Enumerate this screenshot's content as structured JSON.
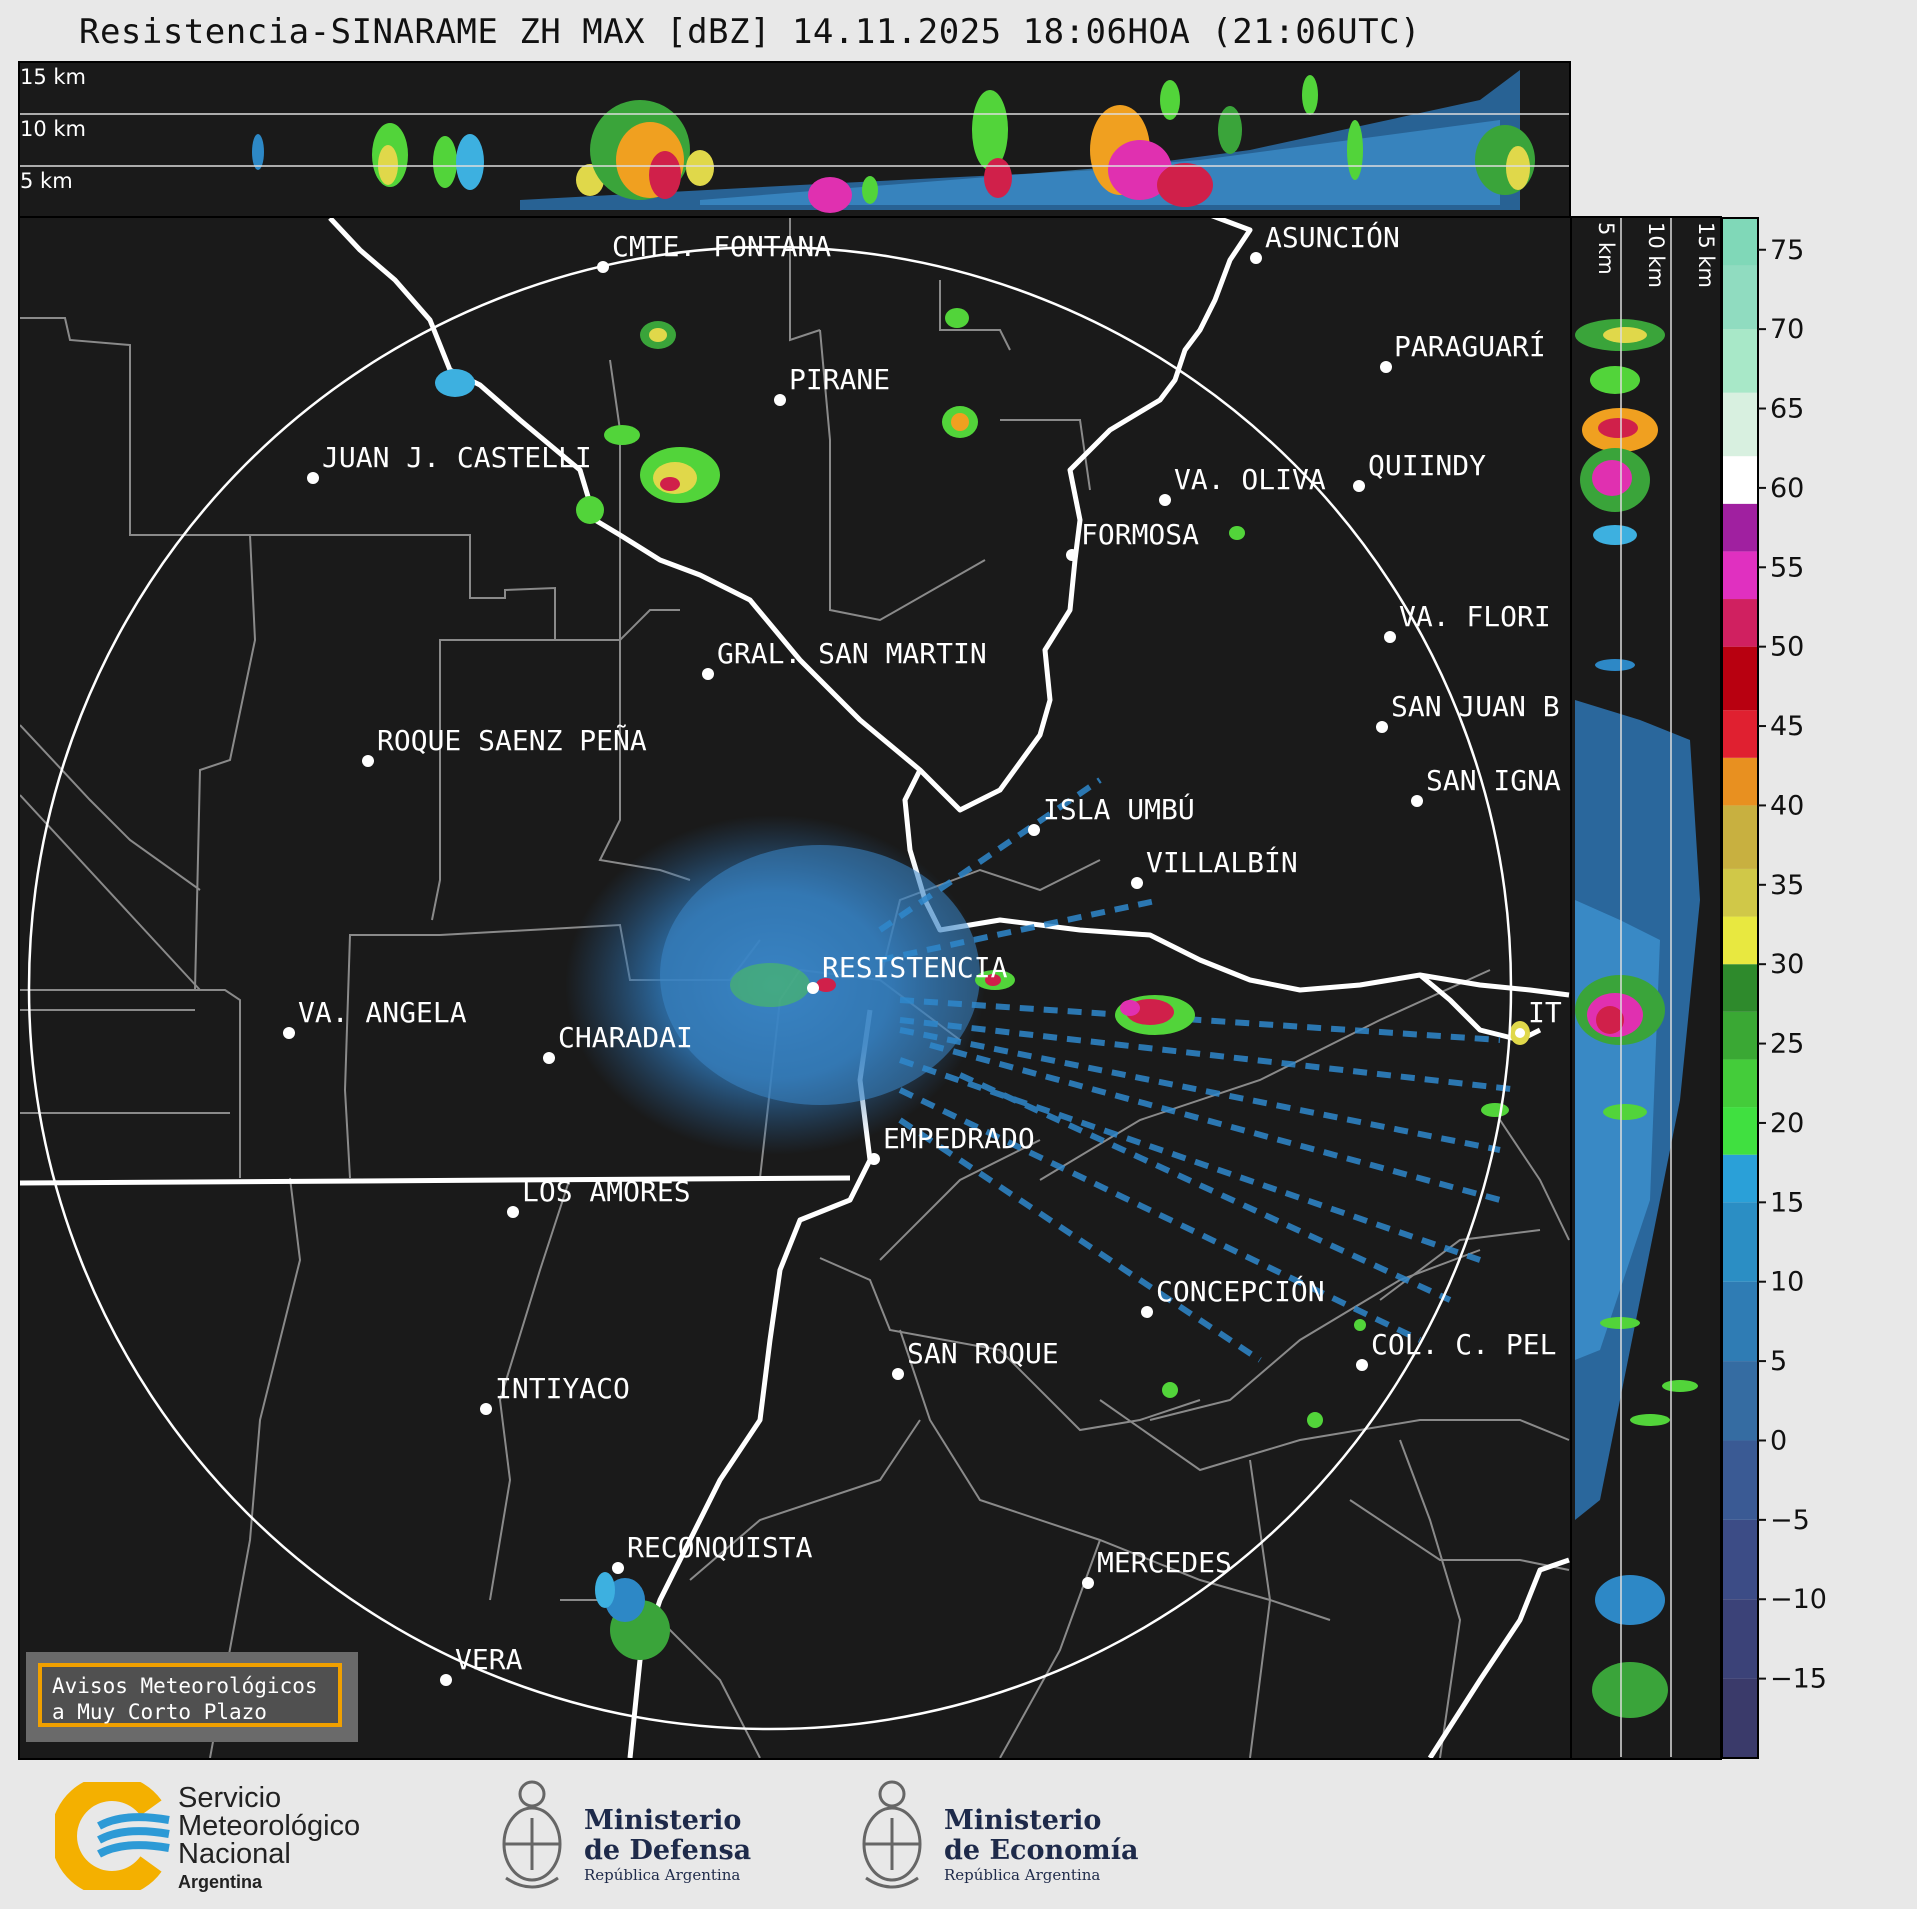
{
  "title": "Resistencia-SINARAME ZH MAX [dBZ] 14.11.2025 18:06HOA (21:06UTC)",
  "top_panel_labels": [
    "15 km",
    "10 km",
    "5 km"
  ],
  "side_panel_labels": [
    "5 km",
    "10 km",
    "15 km"
  ],
  "colorbar": {
    "ticks": [
      "75",
      "70",
      "65",
      "60",
      "55",
      "50",
      "45",
      "40",
      "35",
      "30",
      "25",
      "20",
      "15",
      "10",
      "5",
      "0",
      "−5",
      "−10",
      "−15"
    ],
    "range": [
      -20,
      77
    ]
  },
  "cities": [
    {
      "name": "CMTE. FONTANA"
    },
    {
      "name": "ASUNCIÓN"
    },
    {
      "name": "PARAGUARÍ"
    },
    {
      "name": "PIRANE"
    },
    {
      "name": "JUAN J. CASTELLI"
    },
    {
      "name": "VA. OLIVA"
    },
    {
      "name": "QUIINDY"
    },
    {
      "name": "FORMOSA"
    },
    {
      "name": "VA. FLORI"
    },
    {
      "name": "GRAL. SAN MARTIN"
    },
    {
      "name": "SAN JUAN B"
    },
    {
      "name": "ROQUE SAENZ PEÑA"
    },
    {
      "name": "SAN IGNA"
    },
    {
      "name": "ISLA UMBÚ"
    },
    {
      "name": "VILLALBÍN"
    },
    {
      "name": "RESISTENCIA"
    },
    {
      "name": "VA. ANGELA"
    },
    {
      "name": "CHARADAI"
    },
    {
      "name": "IT"
    },
    {
      "name": "EMPEDRADO"
    },
    {
      "name": "LOS AMORES"
    },
    {
      "name": "CONCEPCIÓN"
    },
    {
      "name": "SAN ROQUE"
    },
    {
      "name": "COL. C. PEL"
    },
    {
      "name": "INTIYACO"
    },
    {
      "name": "RECONQUISTA"
    },
    {
      "name": "MERCEDES"
    },
    {
      "name": "VERA"
    }
  ],
  "avisos": {
    "line1": "Avisos Meteorológicos",
    "line2": "a Muy Corto Plazo"
  },
  "logos": {
    "smn": {
      "l1": "Servicio",
      "l2": "Meteorológico",
      "l3": "Nacional",
      "l4": "Argentina"
    },
    "defensa": {
      "l1": "Ministerio",
      "l2": "de Defensa",
      "l3": "República Argentina"
    },
    "economia": {
      "l1": "Ministerio",
      "l2": "de Economía",
      "l3": "República Argentina"
    }
  },
  "colors": {
    "background": "#1a1a1a",
    "page": "#e8e8e8",
    "accent": "#f0a000"
  }
}
